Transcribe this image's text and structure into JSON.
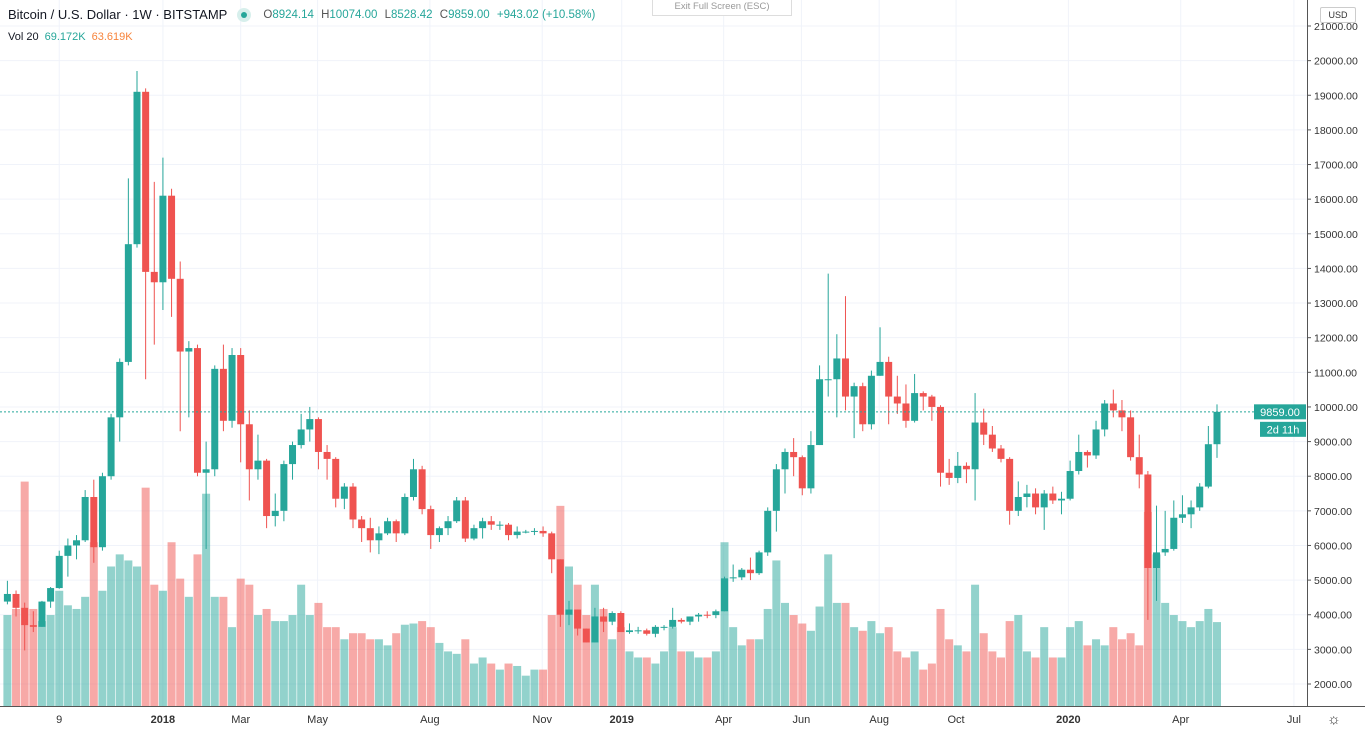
{
  "header": {
    "symbol": "Bitcoin / U.S. Dollar · 1W · BITSTAMP",
    "ohlc": {
      "o_label": "O",
      "o": "8924.14",
      "h_label": "H",
      "h": "10074.00",
      "l_label": "L",
      "l": "8528.42",
      "c_label": "C",
      "c": "9859.00",
      "change": "+943.02 (+10.58%)"
    },
    "volume_label": "Vol 20",
    "volume_value": "69.172K",
    "volume_ma": "63.619K"
  },
  "exit_fullscreen": "Exit Full Screen (ESC)",
  "currency": "USD",
  "price_tag": "9859.00",
  "countdown": "2d 11h",
  "icons": {
    "settings": "gear-icon",
    "status": "market-open-dot-icon"
  },
  "colors": {
    "up": "#26a69a",
    "down": "#ef5350",
    "vol_ma": "#f7843c"
  },
  "chart_data": {
    "type": "candlestick",
    "title": "Bitcoin / U.S. Dollar · 1W · BITSTAMP",
    "ylabel": "USD",
    "ylim": [
      2000,
      21000
    ],
    "y_ticks": [
      "2000.00",
      "3000.00",
      "4000.00",
      "5000.00",
      "6000.00",
      "7000.00",
      "8000.00",
      "9000.00",
      "10000.00",
      "11000.00",
      "12000.00",
      "13000.00",
      "14000.00",
      "15000.00",
      "16000.00",
      "17000.00",
      "18000.00",
      "19000.00",
      "20000.00",
      "21000.00"
    ],
    "x_ticks": [
      {
        "label": "9",
        "index": 6
      },
      {
        "label": "2018",
        "index": 18
      },
      {
        "label": "Mar",
        "index": 27
      },
      {
        "label": "May",
        "index": 35.9
      },
      {
        "label": "Aug",
        "index": 48.9
      },
      {
        "label": "Nov",
        "index": 61.9
      },
      {
        "label": "2019",
        "index": 71.1
      },
      {
        "label": "Apr",
        "index": 82.9
      },
      {
        "label": "Jun",
        "index": 91.9
      },
      {
        "label": "Aug",
        "index": 100.9
      },
      {
        "label": "Oct",
        "index": 109.8
      },
      {
        "label": "2020",
        "index": 122.8
      },
      {
        "label": "Apr",
        "index": 135.8
      },
      {
        "label": "Jul",
        "index": 148.9
      }
    ],
    "grid": true,
    "last_price": 9859,
    "candles_fields": [
      "open",
      "high",
      "low",
      "close",
      "volume_k"
    ],
    "candles": [
      [
        4380,
        4980,
        4300,
        4600,
        75
      ],
      [
        4600,
        4700,
        3950,
        4200,
        80
      ],
      [
        4200,
        4350,
        2970,
        3700,
        185
      ],
      [
        3700,
        4100,
        3500,
        3650,
        80
      ],
      [
        3650,
        4400,
        3650,
        4380,
        70
      ],
      [
        4380,
        4800,
        4200,
        4770,
        75
      ],
      [
        4770,
        5850,
        4750,
        5700,
        95
      ],
      [
        5700,
        6200,
        5100,
        6000,
        83
      ],
      [
        6000,
        6300,
        5600,
        6150,
        80
      ],
      [
        6150,
        7600,
        6100,
        7400,
        90
      ],
      [
        7400,
        7900,
        5500,
        5950,
        135
      ],
      [
        5950,
        8100,
        5850,
        8000,
        95
      ],
      [
        8000,
        9800,
        7900,
        9700,
        115
      ],
      [
        9700,
        11400,
        9000,
        11300,
        125
      ],
      [
        11300,
        16600,
        11200,
        14700,
        120
      ],
      [
        14700,
        19700,
        14600,
        19100,
        115
      ],
      [
        19100,
        19200,
        10800,
        13900,
        180
      ],
      [
        13900,
        16500,
        11800,
        13600,
        100
      ],
      [
        13600,
        17200,
        12800,
        16100,
        95
      ],
      [
        16100,
        16300,
        12600,
        13700,
        135
      ],
      [
        13700,
        14200,
        9300,
        11600,
        105
      ],
      [
        11600,
        11900,
        9700,
        11700,
        90
      ],
      [
        11700,
        11800,
        8000,
        8100,
        125
      ],
      [
        8100,
        9000,
        5900,
        8200,
        175
      ],
      [
        8200,
        11200,
        8000,
        11100,
        90
      ],
      [
        11100,
        11800,
        9300,
        9600,
        90
      ],
      [
        9600,
        11700,
        9400,
        11500,
        65
      ],
      [
        11500,
        11700,
        8400,
        9500,
        105
      ],
      [
        9500,
        9900,
        7300,
        8200,
        100
      ],
      [
        8200,
        9200,
        7900,
        8450,
        75
      ],
      [
        8450,
        8500,
        6500,
        6850,
        80
      ],
      [
        6850,
        7500,
        6550,
        7000,
        70
      ],
      [
        7000,
        8450,
        6700,
        8350,
        70
      ],
      [
        8350,
        9000,
        7900,
        8900,
        75
      ],
      [
        8900,
        9800,
        8800,
        9350,
        100
      ],
      [
        9350,
        10000,
        9000,
        9650,
        75
      ],
      [
        9650,
        9700,
        8200,
        8700,
        85
      ],
      [
        8700,
        8900,
        7900,
        8500,
        65
      ],
      [
        8500,
        8550,
        7100,
        7350,
        65
      ],
      [
        7350,
        7800,
        7050,
        7700,
        55
      ],
      [
        7700,
        7800,
        6500,
        6750,
        60
      ],
      [
        6750,
        6850,
        6100,
        6500,
        60
      ],
      [
        6500,
        6800,
        5800,
        6150,
        55
      ],
      [
        6150,
        6550,
        5750,
        6350,
        55
      ],
      [
        6350,
        6800,
        6300,
        6700,
        50
      ],
      [
        6700,
        6750,
        6100,
        6350,
        60
      ],
      [
        6350,
        7500,
        6300,
        7400,
        67
      ],
      [
        7400,
        8500,
        7300,
        8200,
        68
      ],
      [
        8200,
        8300,
        6900,
        7050,
        70
      ],
      [
        7050,
        7150,
        5900,
        6300,
        65
      ],
      [
        6300,
        6550,
        6100,
        6500,
        52
      ],
      [
        6500,
        6850,
        6300,
        6700,
        45
      ],
      [
        6700,
        7400,
        6650,
        7300,
        43
      ],
      [
        7300,
        7400,
        6100,
        6200,
        55
      ],
      [
        6200,
        6600,
        6150,
        6500,
        35
      ],
      [
        6500,
        6800,
        6200,
        6700,
        40
      ],
      [
        6700,
        6850,
        6450,
        6600,
        35
      ],
      [
        6600,
        6700,
        6450,
        6600,
        30
      ],
      [
        6600,
        6650,
        6150,
        6300,
        35
      ],
      [
        6300,
        6550,
        6200,
        6400,
        33
      ],
      [
        6400,
        6450,
        6350,
        6400,
        25
      ],
      [
        6400,
        6500,
        6300,
        6420,
        30
      ],
      [
        6420,
        6550,
        6250,
        6350,
        30
      ],
      [
        6350,
        6400,
        5200,
        5600,
        75
      ],
      [
        5600,
        5600,
        3650,
        4000,
        165
      ],
      [
        4000,
        4400,
        3700,
        4150,
        115
      ],
      [
        4150,
        4150,
        3400,
        3600,
        100
      ],
      [
        3600,
        3600,
        3200,
        3200,
        75
      ],
      [
        3200,
        4200,
        3200,
        3950,
        100
      ],
      [
        3950,
        4200,
        3500,
        3800,
        80
      ],
      [
        3800,
        4100,
        3700,
        4050,
        55
      ],
      [
        4050,
        4100,
        3500,
        3500,
        65
      ],
      [
        3500,
        3750,
        3450,
        3550,
        45
      ],
      [
        3550,
        3650,
        3450,
        3550,
        40
      ],
      [
        3550,
        3600,
        3400,
        3450,
        40
      ],
      [
        3450,
        3700,
        3350,
        3650,
        35
      ],
      [
        3650,
        3700,
        3550,
        3650,
        45
      ],
      [
        3650,
        4200,
        3600,
        3850,
        65
      ],
      [
        3850,
        3900,
        3750,
        3800,
        45
      ],
      [
        3800,
        3950,
        3700,
        3950,
        45
      ],
      [
        3950,
        4050,
        3800,
        4000,
        40
      ],
      [
        4000,
        4100,
        3900,
        3990,
        40
      ],
      [
        3990,
        4150,
        3900,
        4100,
        45
      ],
      [
        4100,
        5100,
        4100,
        5050,
        135
      ],
      [
        5050,
        5450,
        4950,
        5080,
        65
      ],
      [
        5080,
        5350,
        5000,
        5300,
        50
      ],
      [
        5300,
        5650,
        5000,
        5200,
        55
      ],
      [
        5200,
        5850,
        5150,
        5800,
        55
      ],
      [
        5800,
        7100,
        5700,
        7000,
        80
      ],
      [
        7000,
        8350,
        6400,
        8200,
        120
      ],
      [
        8200,
        8800,
        7500,
        8700,
        85
      ],
      [
        8700,
        9100,
        8000,
        8550,
        75
      ],
      [
        8550,
        8600,
        7450,
        7650,
        68
      ],
      [
        7650,
        9300,
        7500,
        8900,
        62
      ],
      [
        8900,
        11200,
        8900,
        10800,
        82
      ],
      [
        10800,
        13850,
        10300,
        10800,
        125
      ],
      [
        10800,
        12100,
        9700,
        11400,
        85
      ],
      [
        11400,
        13200,
        9900,
        10300,
        85
      ],
      [
        10300,
        10700,
        9100,
        10600,
        65
      ],
      [
        10600,
        10700,
        9300,
        9500,
        62
      ],
      [
        9500,
        11050,
        9350,
        10900,
        70
      ],
      [
        10900,
        12300,
        10900,
        11300,
        60
      ],
      [
        11300,
        11450,
        9500,
        10300,
        65
      ],
      [
        10300,
        10900,
        9800,
        10100,
        45
      ],
      [
        10100,
        10650,
        9400,
        9600,
        40
      ],
      [
        9600,
        10950,
        9550,
        10400,
        45
      ],
      [
        10400,
        10450,
        9900,
        10300,
        30
      ],
      [
        10300,
        10350,
        9600,
        10000,
        35
      ],
      [
        10000,
        10050,
        7700,
        8100,
        80
      ],
      [
        8100,
        8500,
        7750,
        7950,
        55
      ],
      [
        7950,
        8700,
        7800,
        8300,
        50
      ],
      [
        8300,
        8400,
        7800,
        8200,
        45
      ],
      [
        8200,
        10400,
        7300,
        9550,
        100
      ],
      [
        9550,
        9950,
        8900,
        9200,
        60
      ],
      [
        9200,
        9450,
        8700,
        8800,
        45
      ],
      [
        8800,
        8900,
        8400,
        8500,
        40
      ],
      [
        8500,
        8550,
        6600,
        7000,
        70
      ],
      [
        7000,
        7850,
        6850,
        7400,
        75
      ],
      [
        7400,
        7750,
        7100,
        7500,
        45
      ],
      [
        7500,
        7650,
        6900,
        7100,
        40
      ],
      [
        7100,
        7600,
        6450,
        7500,
        65
      ],
      [
        7500,
        7700,
        7200,
        7300,
        40
      ],
      [
        7300,
        7550,
        6900,
        7350,
        40
      ],
      [
        7350,
        8450,
        7300,
        8150,
        65
      ],
      [
        8150,
        9200,
        8050,
        8700,
        70
      ],
      [
        8700,
        8750,
        8250,
        8600,
        50
      ],
      [
        8600,
        9600,
        8500,
        9350,
        55
      ],
      [
        9350,
        10200,
        9150,
        10100,
        50
      ],
      [
        10100,
        10500,
        9700,
        9900,
        65
      ],
      [
        9900,
        10200,
        9300,
        9700,
        55
      ],
      [
        9700,
        9900,
        8450,
        8550,
        60
      ],
      [
        8550,
        9200,
        7650,
        8050,
        50
      ],
      [
        8050,
        8150,
        3850,
        5350,
        160
      ],
      [
        5350,
        7150,
        4400,
        5800,
        125
      ],
      [
        5800,
        7000,
        5700,
        5900,
        85
      ],
      [
        5900,
        7300,
        5850,
        6800,
        75
      ],
      [
        6800,
        7450,
        6650,
        6900,
        70
      ],
      [
        6900,
        7300,
        6500,
        7100,
        65
      ],
      [
        7100,
        7800,
        7000,
        7700,
        70
      ],
      [
        7700,
        9450,
        7650,
        8924,
        80
      ],
      [
        8924.14,
        10074,
        8528.42,
        9859,
        69.172
      ]
    ]
  }
}
